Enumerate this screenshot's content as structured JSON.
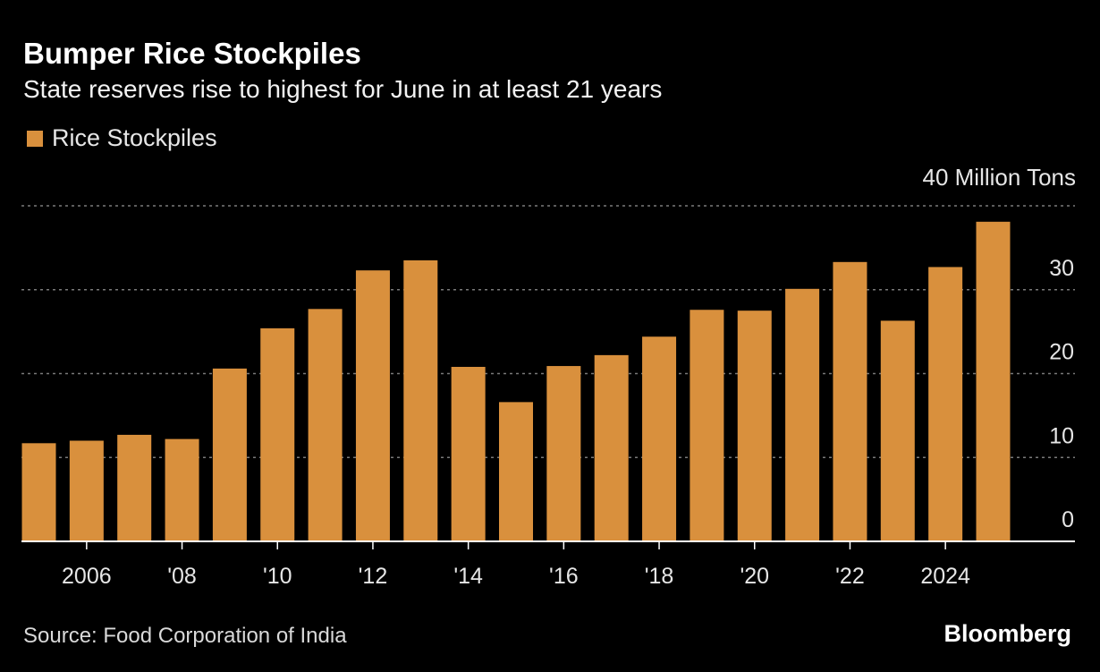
{
  "header": {
    "title": "Bumper Rice Stockpiles",
    "subtitle": "State reserves rise to highest for June in at least 21 years"
  },
  "legend": {
    "label": "Rice Stockpiles"
  },
  "footer": {
    "source": "Source: Food Corporation of India",
    "brand": "Bloomberg"
  },
  "colors": {
    "background": "#000000",
    "bar": "#d9903d",
    "grid": "#7a7a7a",
    "text": "#ffffff"
  },
  "chart_data": {
    "type": "bar",
    "title": "Bumper Rice Stockpiles",
    "subtitle": "State reserves rise to highest for June in at least 21 years",
    "unit_label": "40 Million Tons",
    "categories": [
      2005,
      2006,
      2007,
      2008,
      2009,
      2010,
      2011,
      2012,
      2013,
      2014,
      2015,
      2016,
      2017,
      2018,
      2019,
      2020,
      2021,
      2022,
      2023,
      2024,
      2025
    ],
    "series": [
      {
        "name": "Rice Stockpiles",
        "values": [
          11.7,
          12.0,
          12.7,
          12.2,
          20.6,
          25.4,
          27.7,
          32.3,
          33.5,
          20.8,
          16.6,
          20.9,
          22.2,
          24.4,
          27.6,
          27.5,
          30.1,
          33.3,
          26.3,
          32.7,
          38.1
        ]
      }
    ],
    "x_tick_labels": [
      {
        "x": 2006,
        "label": "2006"
      },
      {
        "x": 2008,
        "label": "'08"
      },
      {
        "x": 2010,
        "label": "'10"
      },
      {
        "x": 2012,
        "label": "'12"
      },
      {
        "x": 2014,
        "label": "'14"
      },
      {
        "x": 2016,
        "label": "'16"
      },
      {
        "x": 2018,
        "label": "'18"
      },
      {
        "x": 2020,
        "label": "'20"
      },
      {
        "x": 2022,
        "label": "'22"
      },
      {
        "x": 2024,
        "label": "2024"
      }
    ],
    "y_ticks": [
      0,
      10,
      20,
      30
    ],
    "ylim": [
      0,
      40
    ],
    "y_axis_side": "right",
    "grid": true,
    "legend_position": "top-left"
  }
}
